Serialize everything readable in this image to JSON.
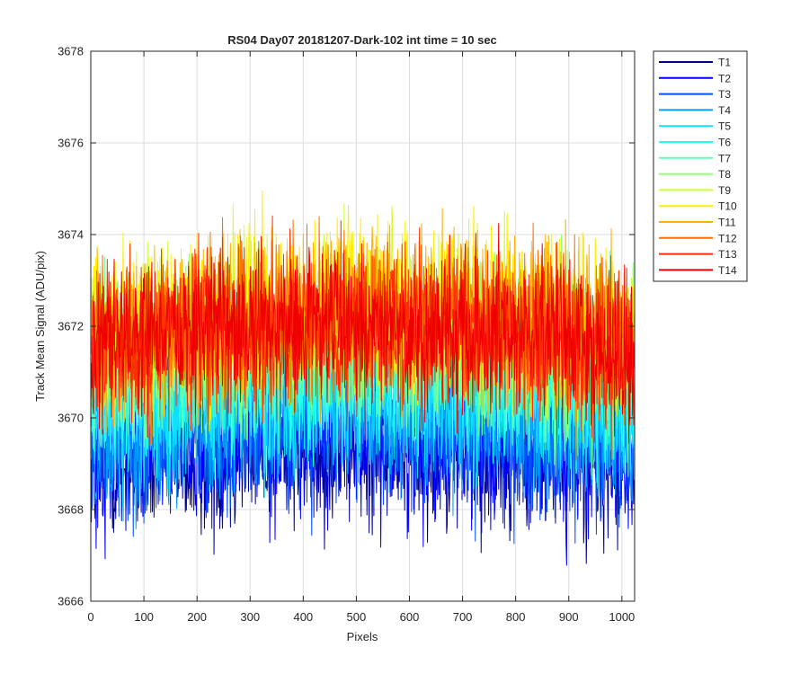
{
  "chart_data": {
    "type": "line",
    "title": "RS04 Day07 20181207-Dark-102 int time = 10 sec",
    "xlabel": "Pixels",
    "ylabel": "Track Mean Signal (ADU/pix)",
    "xlim": [
      0,
      1024
    ],
    "ylim": [
      3666,
      3678
    ],
    "xticks": [
      0,
      100,
      200,
      300,
      400,
      500,
      600,
      700,
      800,
      900,
      1000
    ],
    "yticks": [
      3666,
      3668,
      3670,
      3672,
      3674,
      3676,
      3678
    ],
    "grid": true,
    "legend_position": "outside top-right",
    "notes": "Each track is a noisy trace over pixels 1-1024; mean levels (smile-shaped across pixels) estimated by eye, noise about ±1.4 ADU.",
    "series": [
      {
        "name": "T1",
        "color": "#00008f",
        "mean": 3669.2,
        "noise": 1.4
      },
      {
        "name": "T2",
        "color": "#0000ff",
        "mean": 3669.4,
        "noise": 1.4
      },
      {
        "name": "T3",
        "color": "#0050ff",
        "mean": 3669.7,
        "noise": 1.4
      },
      {
        "name": "T4",
        "color": "#00a0ff",
        "mean": 3670.0,
        "noise": 1.4
      },
      {
        "name": "T5",
        "color": "#10dfff",
        "mean": 3670.4,
        "noise": 1.4
      },
      {
        "name": "T6",
        "color": "#20ffef",
        "mean": 3670.8,
        "noise": 1.4
      },
      {
        "name": "T7",
        "color": "#60ffb0",
        "mean": 3671.2,
        "noise": 1.4
      },
      {
        "name": "T8",
        "color": "#90ff70",
        "mean": 3671.5,
        "noise": 1.4
      },
      {
        "name": "T9",
        "color": "#cfff30",
        "mean": 3671.9,
        "noise": 1.4
      },
      {
        "name": "T10",
        "color": "#ffef00",
        "mean": 3672.2,
        "noise": 1.4
      },
      {
        "name": "T11",
        "color": "#ffb000",
        "mean": 3672.0,
        "noise": 1.4
      },
      {
        "name": "T12",
        "color": "#ff7000",
        "mean": 3671.9,
        "noise": 1.4
      },
      {
        "name": "T13",
        "color": "#ff3000",
        "mean": 3671.7,
        "noise": 1.4
      },
      {
        "name": "T14",
        "color": "#ef0000",
        "mean": 3671.8,
        "noise": 1.4
      }
    ]
  }
}
